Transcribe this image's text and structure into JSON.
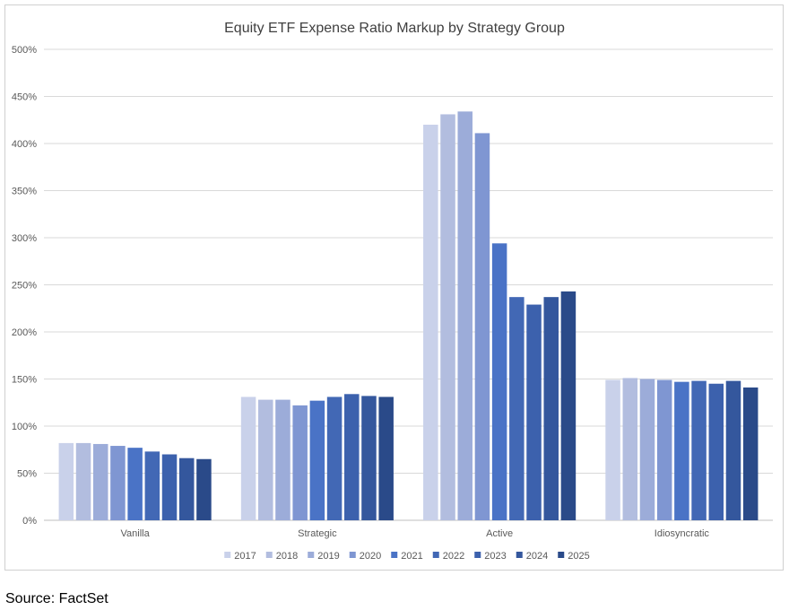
{
  "chart_data": {
    "type": "bar",
    "title": "Equity ETF Expense Ratio Markup by Strategy Group",
    "xlabel": "",
    "ylabel": "",
    "ylim": [
      0,
      500
    ],
    "y_ticks": [
      "0%",
      "50%",
      "100%",
      "150%",
      "200%",
      "250%",
      "300%",
      "350%",
      "400%",
      "450%",
      "500%"
    ],
    "grid": true,
    "legend_position": "bottom",
    "categories": [
      "Vanilla",
      "Strategic",
      "Active",
      "Idiosyncratic"
    ],
    "series": [
      {
        "name": "2017",
        "color": "#c9d1ea",
        "values": [
          82,
          131,
          420,
          149
        ]
      },
      {
        "name": "2018",
        "color": "#b2bddf",
        "values": [
          82,
          128,
          431,
          151
        ]
      },
      {
        "name": "2019",
        "color": "#9cacd9",
        "values": [
          81,
          128,
          434,
          150
        ]
      },
      {
        "name": "2020",
        "color": "#7f96d2",
        "values": [
          79,
          122,
          411,
          149
        ]
      },
      {
        "name": "2021",
        "color": "#4a73c6",
        "values": [
          77,
          127,
          294,
          147
        ]
      },
      {
        "name": "2022",
        "color": "#4268b5",
        "values": [
          73,
          131,
          237,
          148
        ]
      },
      {
        "name": "2023",
        "color": "#3c61ad",
        "values": [
          70,
          134,
          229,
          145
        ]
      },
      {
        "name": "2024",
        "color": "#34579d",
        "values": [
          66,
          132,
          237,
          148
        ]
      },
      {
        "name": "2025",
        "color": "#2a4a89",
        "values": [
          65,
          131,
          243,
          141
        ]
      }
    ]
  },
  "source_note": "Source: FactSet"
}
